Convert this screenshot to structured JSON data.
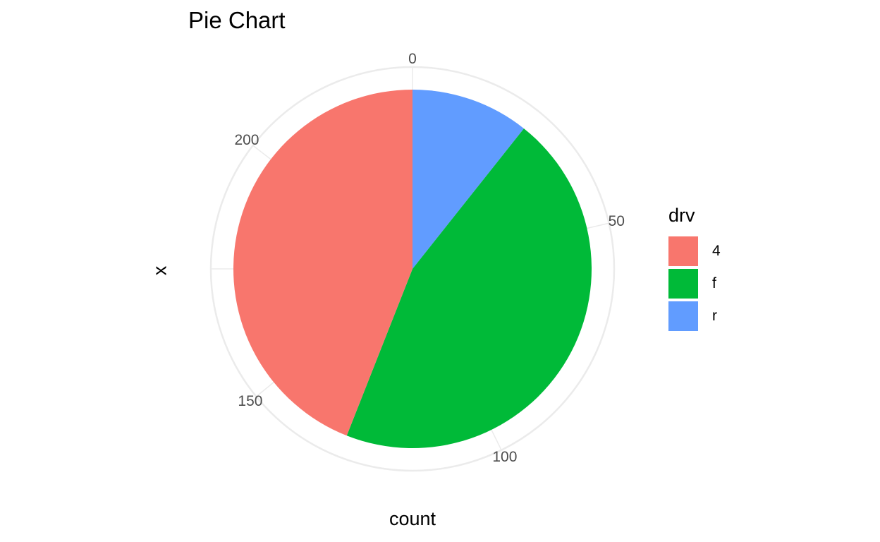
{
  "chart_data": {
    "type": "pie",
    "title": "Pie Chart",
    "xlabel": "count",
    "ylabel": "x",
    "legend": {
      "title": "drv",
      "position": "right"
    },
    "categories": [
      "4",
      "f",
      "r"
    ],
    "values": [
      103,
      106,
      25
    ],
    "colors": [
      "#F8766D",
      "#00BA38",
      "#619CFF"
    ],
    "theta_ticks": [
      "0",
      "50",
      "100",
      "150",
      "200"
    ],
    "theta_tick_values": [
      0,
      50,
      100,
      150,
      200
    ],
    "total": 234,
    "grid": true
  },
  "labels": {
    "title": "Pie Chart",
    "xlabel": "count",
    "ylabel": "x",
    "legend_title": "drv",
    "legend_items": [
      "4",
      "f",
      "r"
    ],
    "ticks": [
      "0",
      "50",
      "100",
      "150",
      "200"
    ]
  }
}
